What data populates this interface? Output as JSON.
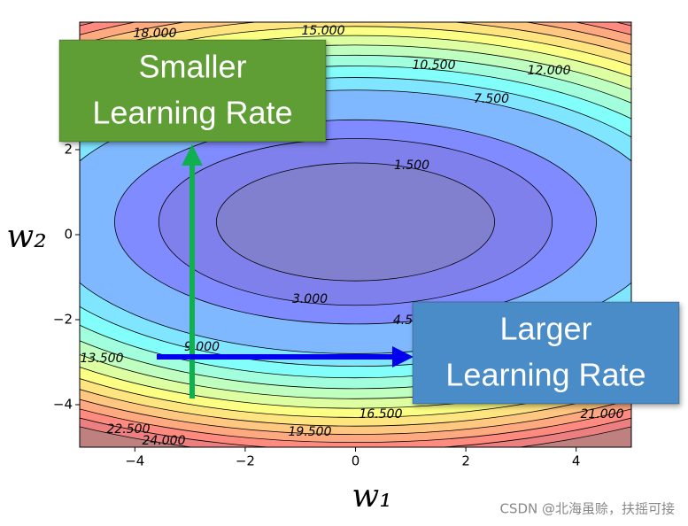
{
  "chart_data": {
    "type": "contour",
    "xlim": [
      -5,
      5
    ],
    "ylim": [
      -5,
      5
    ],
    "xticks": [
      {
        "value": -4,
        "label": "−4"
      },
      {
        "value": -2,
        "label": "−2"
      },
      0,
      2,
      4
    ],
    "yticks": [
      {
        "value": -4,
        "label": "−4"
      },
      {
        "value": -2,
        "label": "−2"
      },
      0,
      2
    ],
    "x_label": "w₁",
    "y_label": "w₂",
    "levels": [
      {
        "value": 1.5,
        "label": "1.500"
      },
      {
        "value": 3,
        "label": "3.000"
      },
      {
        "value": 4.5,
        "label": "4.5"
      },
      {
        "value": 7.5,
        "label": "7.500"
      },
      {
        "value": 9,
        "label": "9.000"
      },
      {
        "value": 10.5,
        "label": "10.500"
      },
      {
        "value": 12,
        "label": "12.000"
      },
      {
        "value": 13.5,
        "label": "13.500"
      },
      {
        "value": 15,
        "label": "15.000"
      },
      {
        "value": 16.5,
        "label": "16.500"
      },
      {
        "value": 18,
        "label": "18.000"
      },
      {
        "value": 19.5,
        "label": "19.500"
      },
      {
        "value": 21,
        "label": "21.000"
      },
      {
        "value": 22.5,
        "label": "22.500"
      },
      {
        "value": 24,
        "label": "24.000"
      }
    ],
    "annotations": [
      {
        "lines": [
          "Smaller",
          "Learning Rate"
        ],
        "color": "#5f9e35"
      },
      {
        "lines": [
          "Larger",
          "Learning Rate"
        ],
        "color": "#4a8cc8"
      }
    ],
    "arrow_colors": [
      "#10b050",
      "#0000ee"
    ],
    "watermark": "CSDN @北海虽赊，扶摇可接"
  }
}
